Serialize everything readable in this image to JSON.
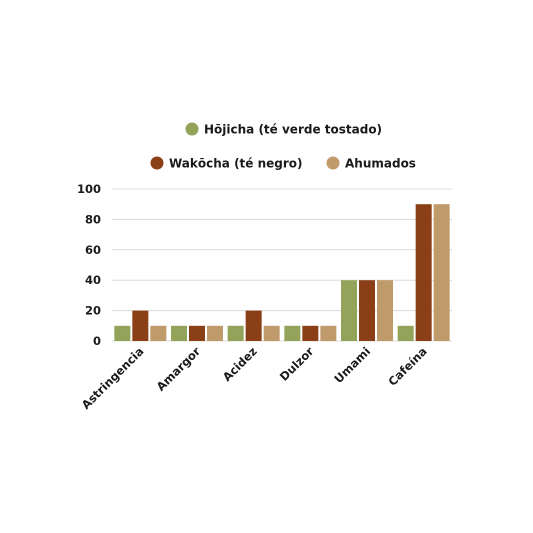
{
  "chart_data": {
    "type": "bar",
    "title": "",
    "xlabel": "",
    "ylabel": "",
    "ylim": [
      0,
      100
    ],
    "yticks": [
      0,
      20,
      40,
      60,
      80,
      100
    ],
    "grid": true,
    "legend_position": "top",
    "categories": [
      "Astringencia",
      "Amargor",
      "Acidez",
      "Dulzor",
      "Umami",
      "Cafeína"
    ],
    "series": [
      {
        "name": "Hōjicha (té verde tostado)",
        "color": "#93a45a",
        "values": [
          10,
          10,
          10,
          10,
          40,
          10
        ]
      },
      {
        "name": "Wakōcha (té negro)",
        "color": "#8b3f17",
        "values": [
          20,
          10,
          20,
          10,
          40,
          90
        ]
      },
      {
        "name": "Ahumados",
        "color": "#bf9a6b",
        "values": [
          10,
          10,
          10,
          10,
          40,
          90
        ]
      }
    ]
  }
}
